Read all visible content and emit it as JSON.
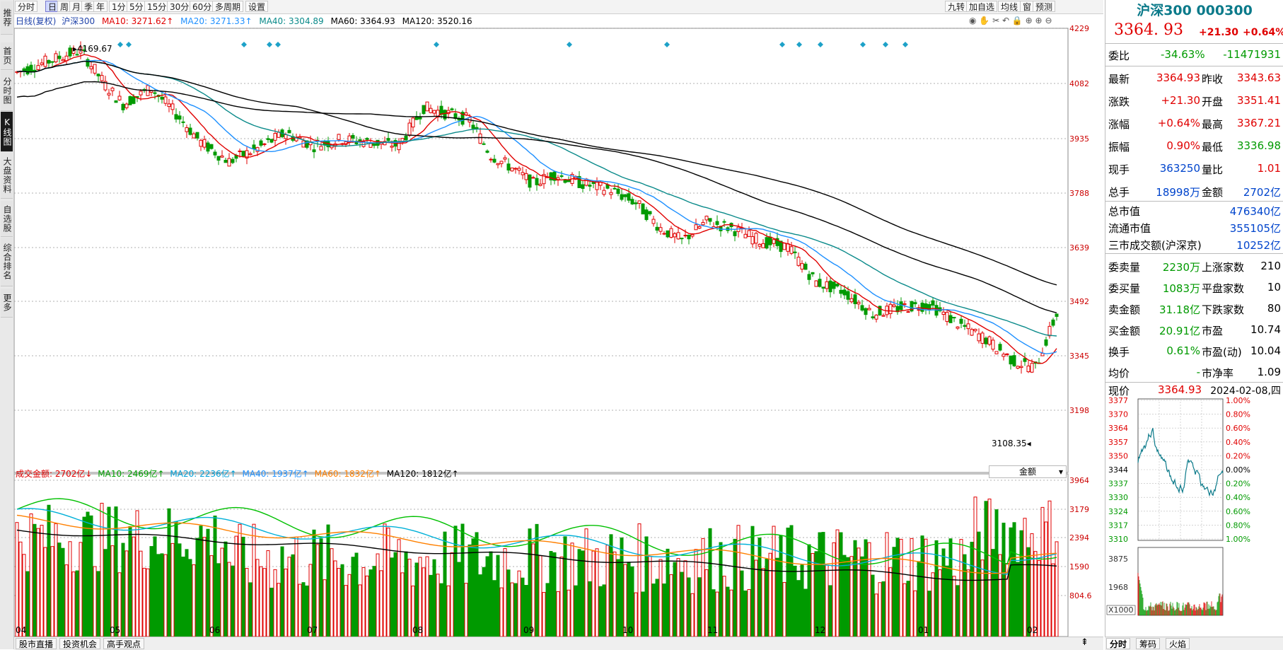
{
  "sidebar": {
    "items": [
      "推荐",
      "首页",
      "分时图",
      "K线图",
      "大盘资料",
      "自选股",
      "综合排名",
      "更多"
    ]
  },
  "toolbar": {
    "periods": [
      "分时",
      "日",
      "周",
      "月",
      "季",
      "年",
      "1分",
      "5分",
      "15分",
      "30分",
      "60分",
      "多周期",
      "设置"
    ],
    "active_period": "日",
    "right_buttons": [
      "九转",
      "加自选",
      "均线",
      "窗",
      "预测"
    ]
  },
  "main_legend": {
    "title": "日线(复权)",
    "name": "沪深300",
    "ma10": "MA10: 3271.62↑",
    "ma20": "MA20: 3271.33↑",
    "ma40": "MA40: 3304.89",
    "ma60": "MA60: 3364.93",
    "ma120": "MA120: 3520.16"
  },
  "price_axis": [
    "4229",
    "4082",
    "3935",
    "3788",
    "3639",
    "3492",
    "3345",
    "3198"
  ],
  "annotations": {
    "high": "4169.67",
    "low": "3108.35"
  },
  "vol_legend": {
    "amount": "成交金额: 2702亿↓",
    "ma10": "MA10: 2469亿↑",
    "ma20": "MA20: 2236亿↑",
    "ma40": "MA40: 1937亿↑",
    "ma60": "MA60: 1832亿↑",
    "ma120": "MA120: 1812亿↑"
  },
  "vol_selector": "金额",
  "vol_axis": [
    "3964",
    "3179",
    "2394",
    "1590",
    "804.6"
  ],
  "months": [
    "04",
    "05",
    "06",
    "07",
    "08",
    "09",
    "10",
    "11",
    "12",
    "01",
    "02"
  ],
  "colors": {
    "up": "#e00000",
    "down": "#009a00",
    "ma10": "#e00000",
    "ma20": "#1e90ff",
    "ma40": "#0a8a8a",
    "ma60": "#000000",
    "vol_ma10": "#00c000",
    "vol_ma40": "#00b0d8",
    "vol_ma60": "#ff8000",
    "vol_ma120": "#000000"
  },
  "quote": {
    "title": "沪深300 000300",
    "price": "3364. 93",
    "change": "+21.30",
    "change_pct": "+0.64%",
    "weibi_label": "委比",
    "weibi_pct": "-34.63%",
    "weibi_val": "-11471931",
    "rows": [
      [
        "最新",
        "3364.93",
        "昨收",
        "3343.63"
      ],
      [
        "涨跌",
        "+21.30",
        "开盘",
        "3351.41"
      ],
      [
        "涨幅",
        "+0.64%",
        "最高",
        "3367.21"
      ],
      [
        "振幅",
        "0.90%",
        "最低",
        "3336.98"
      ],
      [
        "现手",
        "363250",
        "量比",
        "1.01"
      ],
      [
        "总手",
        "18998万",
        "金额",
        "2702亿"
      ]
    ],
    "mkt_rows": [
      [
        "总市值",
        "476340亿"
      ],
      [
        "流通市值",
        "355105亿"
      ],
      [
        "三市成交额(沪深京)",
        "10252亿"
      ]
    ],
    "order_rows": [
      [
        "委卖量",
        "2230万",
        "上涨家数",
        "210"
      ],
      [
        "委买量",
        "1083万",
        "平盘家数",
        "10"
      ],
      [
        "卖金额",
        "31.18亿",
        "下跌家数",
        "80"
      ],
      [
        "买金额",
        "20.91亿",
        "市盈",
        "10.74"
      ],
      [
        "换手",
        "0.61%",
        "市盈(动)",
        "10.04"
      ],
      [
        "均价",
        "-",
        "市净率",
        "1.09"
      ]
    ]
  },
  "mini": {
    "now_label": "现价",
    "now_price": "3364.93",
    "date": "2024-02-08,四",
    "price_ticks": [
      "3377",
      "3370",
      "3364",
      "3357",
      "3350",
      "3344",
      "3337",
      "3330",
      "3324",
      "3317",
      "3310"
    ],
    "pct_ticks": [
      "1.00%",
      "0.80%",
      "0.60%",
      "0.40%",
      "0.20%",
      "0.00%",
      "0.20%",
      "0.40%",
      "0.60%",
      "0.80%",
      "1.00%"
    ],
    "vol_ticks": [
      "3875",
      "1968",
      "X1000"
    ]
  },
  "bottom_tabs": [
    "股市直播",
    "投资机会",
    "高手观点"
  ],
  "right_bottom_tabs": [
    "分时",
    "筹码",
    "火焰"
  ]
}
